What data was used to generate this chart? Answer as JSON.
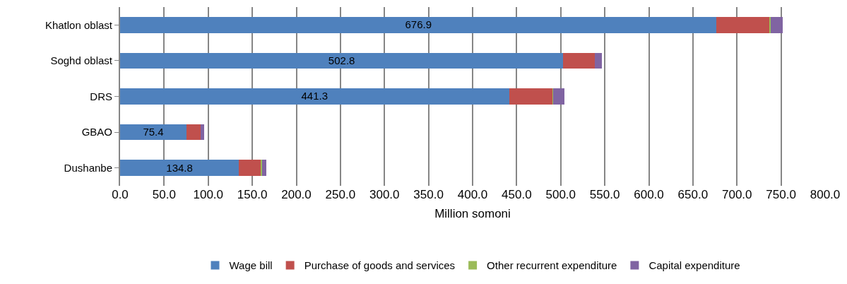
{
  "chart_data": {
    "type": "bar",
    "orientation": "horizontal",
    "stacked": true,
    "categories": [
      "Khatlon oblast",
      "Soghd oblast",
      "DRS",
      "GBAO",
      "Dushanbe"
    ],
    "series": [
      {
        "name": "Wage bill",
        "color": "#4f81bd",
        "values": [
          676.9,
          502.8,
          441.3,
          75.4,
          134.8
        ],
        "value_labels": [
          "676.9",
          "502.8",
          "441.3",
          "75.4",
          "134.8"
        ]
      },
      {
        "name": "Purchase of goods and services",
        "color": "#c0504d",
        "values": [
          60,
          36,
          49,
          16,
          25
        ]
      },
      {
        "name": "Other recurrent expenditure",
        "color": "#9bbb59",
        "values": [
          1,
          null,
          1,
          null,
          1
        ]
      },
      {
        "name": "Capital expenditure",
        "color": "#8064a2",
        "values": [
          14,
          8,
          13,
          4,
          5
        ]
      }
    ],
    "xlim": [
      0,
      800
    ],
    "xticks": [
      {
        "value": 0,
        "label": "0.0"
      },
      {
        "value": 50,
        "label": "50.0"
      },
      {
        "value": 100,
        "label": "100.0"
      },
      {
        "value": 150,
        "label": "150.0"
      },
      {
        "value": 200,
        "label": "200.0"
      },
      {
        "value": 250,
        "label": "250.0"
      },
      {
        "value": 300,
        "label": "300.0"
      },
      {
        "value": 350,
        "label": "350.0"
      },
      {
        "value": 400,
        "label": "400.0"
      },
      {
        "value": 450,
        "label": "450.0"
      },
      {
        "value": 500,
        "label": "500.0"
      },
      {
        "value": 550,
        "label": "550.0"
      },
      {
        "value": 600,
        "label": "600.0"
      },
      {
        "value": 650,
        "label": "650.0"
      },
      {
        "value": 700,
        "label": "700.0"
      },
      {
        "value": 750,
        "label": "750.0"
      },
      {
        "value": 800,
        "label": "800.0"
      }
    ],
    "xlabel": "Million somoni",
    "grid": "x",
    "legend": "bottom"
  }
}
